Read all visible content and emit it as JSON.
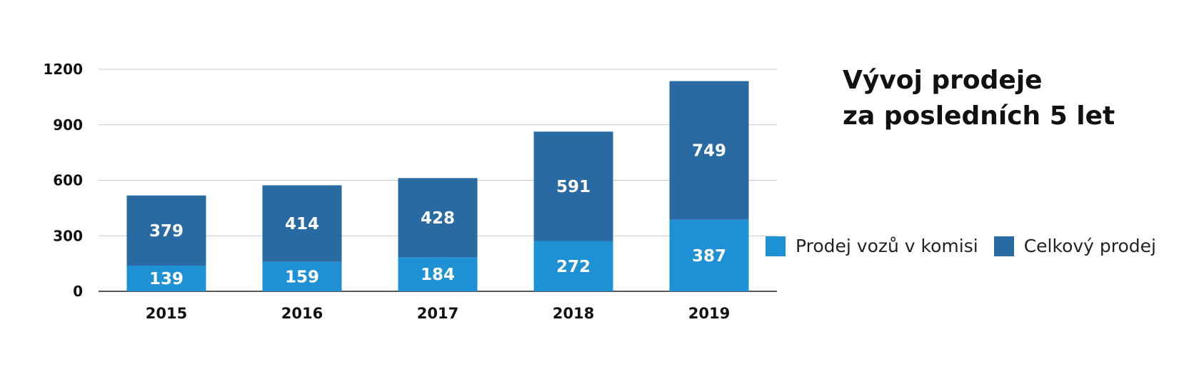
{
  "chart_data": {
    "type": "bar",
    "stacked": true,
    "title_lines": [
      "Vývoj prodeje",
      "za posledních 5 let"
    ],
    "categories": [
      "2015",
      "2016",
      "2017",
      "2018",
      "2019"
    ],
    "series": [
      {
        "name": "Prodej vozů v komisi",
        "color": "#1e90d4",
        "values": [
          139,
          159,
          184,
          272,
          387
        ]
      },
      {
        "name": "Celkový prodej",
        "color": "#2a6aa3",
        "values": [
          379,
          414,
          428,
          591,
          749
        ]
      }
    ],
    "ylim": [
      0,
      1200
    ],
    "yticks": [
      "0",
      "300",
      "600",
      "900",
      "1200"
    ],
    "grid": true,
    "legend_position": "right"
  }
}
